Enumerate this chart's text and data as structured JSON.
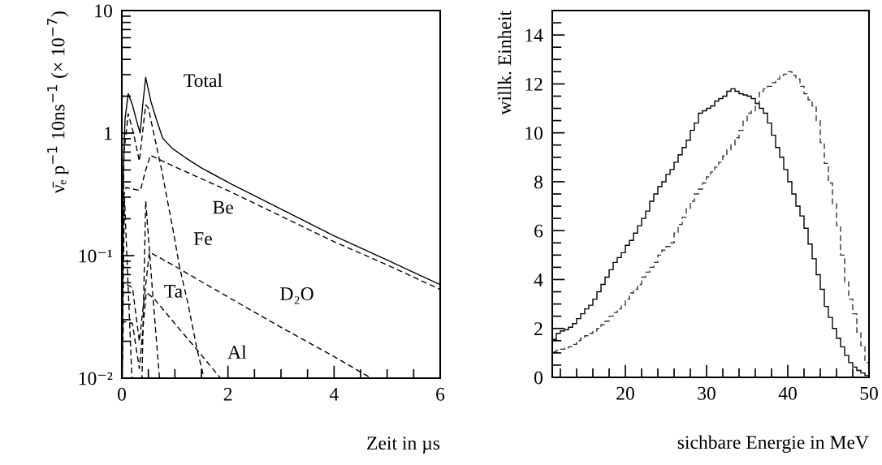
{
  "chart_data": [
    {
      "type": "line",
      "log": "y",
      "xlabel": "Zeit in µs",
      "ylabel": "ν̄ₑ p$^{−1}$ 10ns$^{−1}$ (× 10$^{−7}$)",
      "xlim": [
        0,
        6
      ],
      "ylim": [
        0.01,
        10
      ],
      "xticks": [
        0,
        {
          "value": 0.5,
          "label": null
        },
        {
          "value": 1,
          "label": null
        },
        {
          "value": 1.5,
          "label": null
        },
        2,
        {
          "value": 2.5,
          "label": null
        },
        {
          "value": 3,
          "label": null
        },
        {
          "value": 3.5,
          "label": null
        },
        4,
        {
          "value": 4.5,
          "label": null
        },
        {
          "value": 5,
          "label": null
        },
        {
          "value": 5.5,
          "label": null
        },
        6
      ],
      "yticks": [
        {
          "value": 0.01,
          "label": "10⁻²"
        },
        {
          "value": 0.02,
          "label": null
        },
        {
          "value": 0.03,
          "label": null
        },
        {
          "value": 0.04,
          "label": null
        },
        {
          "value": 0.05,
          "label": null
        },
        {
          "value": 0.06,
          "label": null
        },
        {
          "value": 0.07,
          "label": null
        },
        {
          "value": 0.08,
          "label": null
        },
        {
          "value": 0.09,
          "label": null
        },
        {
          "value": 0.1,
          "label": "10⁻¹"
        },
        {
          "value": 0.2,
          "label": null
        },
        {
          "value": 0.3,
          "label": null
        },
        {
          "value": 0.4,
          "label": null
        },
        {
          "value": 0.5,
          "label": null
        },
        {
          "value": 0.6,
          "label": null
        },
        {
          "value": 0.7,
          "label": null
        },
        {
          "value": 0.8,
          "label": null
        },
        {
          "value": 0.9,
          "label": null
        },
        1,
        {
          "value": 2,
          "label": null
        },
        {
          "value": 3,
          "label": null
        },
        {
          "value": 4,
          "label": null
        },
        {
          "value": 5,
          "label": null
        },
        {
          "value": 6,
          "label": null
        },
        {
          "value": 7,
          "label": null
        },
        {
          "value": 8,
          "label": null
        },
        {
          "value": 9,
          "label": null
        },
        10
      ],
      "series": [
        {
          "color": "#000000",
          "line_style": "solid",
          "x": [
            0.01,
            0.03,
            0.06,
            0.12,
            0.2,
            0.28,
            0.345,
            0.4,
            0.45,
            0.55,
            0.65,
            0.77,
            0.95,
            1.2,
            1.5,
            2.08,
            3,
            4,
            5,
            6
          ],
          "values": [
            0.01,
            0.5,
            1.3,
            2.1,
            1.7,
            1.25,
            1.0,
            1.8,
            2.85,
            1.8,
            1.3,
            0.91,
            0.75,
            0.63,
            0.52,
            0.38,
            0.24,
            0.145,
            0.092,
            0.058
          ]
        },
        {
          "color": "#000000",
          "line_style": "dashed",
          "x": [
            0.0,
            0.03,
            0.08,
            0.2,
            0.35,
            0.45,
            0.54,
            1,
            2,
            3,
            4,
            5,
            6
          ],
          "values": [
            0.01,
            0.3,
            0.36,
            0.35,
            0.34,
            0.5,
            0.66,
            0.53,
            0.34,
            0.21,
            0.13,
            0.084,
            0.053
          ]
        },
        {
          "color": "#000000",
          "line_style": "dashed",
          "x": [
            0.0,
            0.04,
            0.12,
            0.22,
            0.33,
            0.45,
            0.5,
            0.75,
            0.98,
            1.09,
            1.25,
            1.42,
            1.55
          ],
          "values": [
            0.01,
            0.7,
            1.44,
            1.0,
            0.59,
            1.7,
            1.6,
            0.5,
            0.15,
            0.08,
            0.04,
            0.017,
            0.01
          ]
        },
        {
          "color": "#000000",
          "line_style": "dashed",
          "x": [
            0.0,
            0.05,
            0.19,
            0.38,
            0.45,
            0.58,
            0.71
          ],
          "values": [
            0.01,
            0.3,
            0.01,
            0.01,
            0.28,
            0.05,
            0.01
          ]
        },
        {
          "color": "#000000",
          "line_style": "dashed",
          "x": [
            0.0,
            0.03,
            0.2,
            0.33,
            0.52,
            1,
            2,
            3,
            4,
            4.7
          ],
          "values": [
            0.01,
            0.06,
            0.055,
            0.02,
            0.107,
            0.082,
            0.046,
            0.026,
            0.015,
            0.01
          ]
        },
        {
          "color": "#000000",
          "line_style": "dashed",
          "x": [
            0.0,
            0.03,
            0.2,
            0.33,
            0.46,
            0.6,
            1.09,
            1.42,
            1.86
          ],
          "values": [
            0.01,
            0.029,
            0.028,
            0.012,
            0.05,
            0.045,
            0.025,
            0.017,
            0.01
          ]
        }
      ],
      "annotations": [
        "Total",
        "Be",
        "Fe",
        "Ta",
        "D₂O",
        "Al"
      ]
    },
    {
      "type": "histogram",
      "xlabel": "sichbare Energie in MeV",
      "ylabel": "willk. Einheit",
      "xlim": [
        11,
        50
      ],
      "ylim": [
        0,
        15
      ],
      "xticks": [
        {
          "value": 12,
          "label": null
        },
        {
          "value": 14,
          "label": null
        },
        {
          "value": 16,
          "label": null
        },
        {
          "value": 18,
          "label": null
        },
        20,
        {
          "value": 22,
          "label": null
        },
        {
          "value": 24,
          "label": null
        },
        {
          "value": 26,
          "label": null
        },
        {
          "value": 28,
          "label": null
        },
        30,
        {
          "value": 32,
          "label": null
        },
        {
          "value": 34,
          "label": null
        },
        {
          "value": 36,
          "label": null
        },
        {
          "value": 38,
          "label": null
        },
        40,
        {
          "value": 42,
          "label": null
        },
        {
          "value": 44,
          "label": null
        },
        {
          "value": 46,
          "label": null
        },
        {
          "value": 48,
          "label": null
        },
        50
      ],
      "yticks": [
        0,
        {
          "value": 0.5,
          "label": null
        },
        {
          "value": 1,
          "label": null
        },
        {
          "value": 1.5,
          "label": null
        },
        2,
        {
          "value": 2.5,
          "label": null
        },
        {
          "value": 3,
          "label": null
        },
        {
          "value": 3.5,
          "label": null
        },
        4,
        {
          "value": 4.5,
          "label": null
        },
        {
          "value": 5,
          "label": null
        },
        {
          "value": 5.5,
          "label": null
        },
        6,
        {
          "value": 6.5,
          "label": null
        },
        {
          "value": 7,
          "label": null
        },
        {
          "value": 7.5,
          "label": null
        },
        8,
        {
          "value": 8.5,
          "label": null
        },
        {
          "value": 9,
          "label": null
        },
        {
          "value": 9.5,
          "label": null
        },
        10,
        {
          "value": 10.5,
          "label": null
        },
        {
          "value": 11,
          "label": null
        },
        {
          "value": 11.5,
          "label": null
        },
        12,
        {
          "value": 12.5,
          "label": null
        },
        {
          "value": 13,
          "label": null
        },
        {
          "value": 13.5,
          "label": null
        },
        14,
        {
          "value": 14.5,
          "label": null
        }
      ],
      "bins": [
        11,
        11.5,
        12,
        12.5,
        13,
        13.5,
        14,
        14.5,
        15,
        15.5,
        16,
        16.5,
        17,
        17.5,
        18,
        18.5,
        19,
        19.5,
        20,
        20.5,
        21,
        21.5,
        22,
        22.5,
        23,
        23.5,
        24,
        24.5,
        25,
        25.5,
        26,
        26.5,
        27,
        27.5,
        28,
        28.5,
        29,
        29.5,
        30,
        30.5,
        31,
        31.5,
        32,
        32.5,
        33,
        33.5,
        34,
        34.5,
        35,
        35.5,
        36,
        36.5,
        37,
        37.5,
        38,
        38.5,
        39,
        39.5,
        40,
        40.5,
        41,
        41.5,
        42,
        42.5,
        43,
        43.5,
        44,
        44.5,
        45,
        45.5,
        46,
        46.5,
        47,
        47.5,
        48,
        48.5,
        49,
        49.5,
        50
      ],
      "series": [
        {
          "color": "#000000",
          "line_style": "solid",
          "values": [
            1.55,
            1.8,
            1.9,
            1.95,
            2.05,
            2.2,
            2.4,
            2.6,
            2.8,
            2.95,
            3.2,
            3.5,
            3.8,
            4.1,
            4.4,
            4.7,
            4.9,
            5.1,
            5.4,
            5.6,
            5.9,
            6.2,
            6.5,
            6.8,
            7.2,
            7.5,
            7.8,
            8.0,
            8.3,
            8.5,
            8.8,
            9.1,
            9.4,
            9.7,
            10.1,
            10.4,
            10.8,
            10.9,
            11.0,
            11.1,
            11.3,
            11.4,
            11.5,
            11.7,
            11.8,
            11.7,
            11.6,
            11.55,
            11.5,
            11.4,
            11.2,
            11.0,
            10.8,
            10.4,
            9.9,
            9.4,
            9.0,
            8.5,
            8.0,
            7.5,
            7.0,
            6.6,
            6.1,
            5.45,
            4.85,
            4.2,
            3.6,
            2.9,
            2.45,
            2.0,
            1.6,
            1.25,
            0.9,
            0.6,
            0.42,
            0.28,
            0.18,
            0.08
          ]
        },
        {
          "color": "#333333",
          "line_style": "dashed",
          "values": [
            1.05,
            1.1,
            1.15,
            1.2,
            1.25,
            1.35,
            1.5,
            1.6,
            1.7,
            1.8,
            1.9,
            2.0,
            2.15,
            2.3,
            2.5,
            2.65,
            2.8,
            2.95,
            3.2,
            3.45,
            3.6,
            3.8,
            4.1,
            4.3,
            4.5,
            4.7,
            5.0,
            5.2,
            5.35,
            5.5,
            5.9,
            6.25,
            6.55,
            6.9,
            7.2,
            7.5,
            7.7,
            7.95,
            8.2,
            8.4,
            8.6,
            8.8,
            9.05,
            9.3,
            9.5,
            9.8,
            10.1,
            10.5,
            10.8,
            10.9,
            11.2,
            11.7,
            11.8,
            11.9,
            12.05,
            12.2,
            12.35,
            12.4,
            12.5,
            12.35,
            12.2,
            11.9,
            11.6,
            11.35,
            11.1,
            10.5,
            9.6,
            8.75,
            7.95,
            7.1,
            6.2,
            5.0,
            3.9,
            3.2,
            2.6,
            1.85,
            1.3,
            0.6
          ]
        }
      ]
    }
  ]
}
